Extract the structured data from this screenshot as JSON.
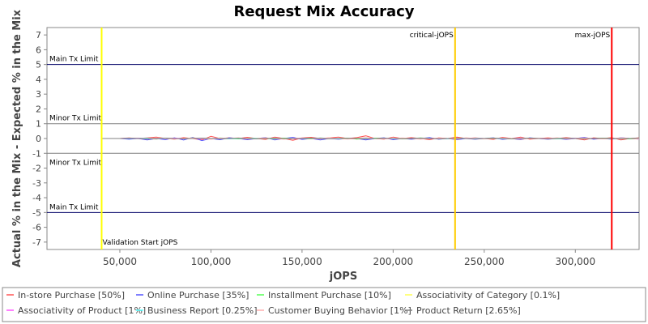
{
  "chart_data": {
    "type": "line",
    "title": "Request Mix Accuracy",
    "xlabel": "jOPS",
    "ylabel": "Actual % in the Mix - Expected % in the Mix",
    "xlim": [
      10000,
      335000
    ],
    "ylim": [
      -7.5,
      7.5
    ],
    "xticks": [
      {
        "value": 50000,
        "label": "50,000"
      },
      {
        "value": 100000,
        "label": "100,000"
      },
      {
        "value": 150000,
        "label": "150,000"
      },
      {
        "value": 200000,
        "label": "200,000"
      },
      {
        "value": 250000,
        "label": "250,000"
      },
      {
        "value": 300000,
        "label": "300,000"
      }
    ],
    "yticks": [
      {
        "value": 7,
        "label": "7"
      },
      {
        "value": 6,
        "label": "6"
      },
      {
        "value": 5,
        "label": "5"
      },
      {
        "value": 4,
        "label": "4"
      },
      {
        "value": 3,
        "label": "3"
      },
      {
        "value": 2,
        "label": "2"
      },
      {
        "value": 1,
        "label": "1"
      },
      {
        "value": 0,
        "label": "0"
      },
      {
        "value": -1,
        "label": "-1"
      },
      {
        "value": -2,
        "label": "-2"
      },
      {
        "value": -3,
        "label": "-3"
      },
      {
        "value": -4,
        "label": "-4"
      },
      {
        "value": -5,
        "label": "-5"
      },
      {
        "value": -6,
        "label": "-6"
      },
      {
        "value": -7,
        "label": "-7"
      }
    ],
    "grid": false,
    "legend_position": "bottom",
    "horizontal_markers": [
      {
        "value": 5,
        "label": "Main Tx Limit",
        "color": "#000066",
        "label_side": "above"
      },
      {
        "value": 1,
        "label": "Minor Tx Limit",
        "color": "#808080",
        "label_side": "above"
      },
      {
        "value": -1,
        "label": "Minor Tx Limit",
        "color": "#808080",
        "label_side": "below"
      },
      {
        "value": -5,
        "label": "Main Tx Limit",
        "color": "#000066",
        "label_side": "above"
      }
    ],
    "vertical_markers": [
      {
        "value": 40000,
        "label": "Validation Start jOPS",
        "color": "#ffff00",
        "label_at": "bottom"
      },
      {
        "value": 234000,
        "label": "critical-jOPS",
        "color": "#ffcc00",
        "label_at": "top"
      },
      {
        "value": 320000,
        "label": "max-jOPS",
        "color": "#ff0000",
        "label_at": "top"
      }
    ],
    "x": [
      40000,
      45000,
      50000,
      55000,
      60000,
      65000,
      70000,
      75000,
      80000,
      85000,
      90000,
      95000,
      100000,
      105000,
      110000,
      115000,
      120000,
      125000,
      130000,
      135000,
      140000,
      145000,
      150000,
      155000,
      160000,
      165000,
      170000,
      175000,
      180000,
      185000,
      190000,
      195000,
      200000,
      205000,
      210000,
      215000,
      220000,
      225000,
      230000,
      235000,
      240000,
      245000,
      250000,
      255000,
      260000,
      265000,
      270000,
      275000,
      280000,
      285000,
      290000,
      295000,
      300000,
      305000,
      310000,
      315000,
      320000,
      325000,
      330000,
      335000
    ],
    "series": [
      {
        "name": "In-store Purchase [50%]",
        "color": "#ff5555",
        "values": [
          0,
          0,
          0,
          0.04,
          0,
          0.05,
          0.1,
          0,
          -0.05,
          0.06,
          0,
          -0.1,
          0.15,
          0,
          0.05,
          0,
          0.08,
          0,
          -0.06,
          0.1,
          0,
          -0.12,
          0.04,
          0.08,
          0,
          0.05,
          0.1,
          0,
          0.06,
          0.18,
          0,
          -0.05,
          0.1,
          0,
          0.06,
          0,
          -0.08,
          0.05,
          0,
          0.1,
          0,
          0.05,
          0,
          -0.06,
          0.08,
          0,
          0.1,
          -0.05,
          0,
          0.05,
          0,
          0.06,
          0,
          -0.1,
          0.05,
          0,
          0.06,
          -0.1,
          0,
          0.05
        ]
      },
      {
        "name": "Online Purchase [35%]",
        "color": "#5555ff",
        "values": [
          0,
          0,
          0,
          -0.05,
          0,
          -0.1,
          0,
          -0.08,
          0.05,
          -0.1,
          0.08,
          -0.14,
          0,
          -0.08,
          0.05,
          0,
          -0.08,
          0,
          0.06,
          -0.1,
          0,
          0.08,
          -0.06,
          0,
          -0.1,
          0,
          -0.05,
          0,
          0,
          -0.1,
          0,
          0.05,
          -0.08,
          0,
          -0.05,
          0,
          0.06,
          -0.05,
          0,
          -0.08,
          0,
          -0.05,
          0,
          0.05,
          -0.06,
          0,
          -0.08,
          0.05,
          0,
          -0.05,
          0,
          -0.06,
          0,
          0.08,
          -0.05,
          0,
          -0.05,
          0.06,
          0,
          -0.04
        ]
      },
      {
        "name": "Installment Purchase [10%]",
        "color": "#55ff55",
        "values": [
          0,
          0,
          0,
          0,
          0.03,
          0,
          -0.04,
          0.03,
          0,
          0,
          0.04,
          0,
          -0.03,
          0.04,
          0,
          -0.03,
          0,
          0.03,
          0,
          -0.03,
          0.03,
          0,
          0,
          -0.03,
          0.04,
          0,
          0,
          0.03,
          -0.04,
          0,
          0.03,
          0,
          0,
          -0.03,
          0,
          0.04,
          0,
          0,
          -0.03,
          0,
          0.03,
          0,
          0,
          0.03,
          0,
          -0.03,
          0,
          0.03,
          0,
          0,
          -0.03,
          0,
          0.03,
          0,
          0,
          0.03,
          0,
          0,
          -0.03,
          0
        ]
      },
      {
        "name": "Associativity of Category [0.1%]",
        "color": "#ffff55",
        "values": [
          0,
          0,
          0,
          0,
          0,
          0,
          0,
          0,
          0,
          0,
          0,
          0,
          0,
          0,
          0,
          0,
          0,
          0,
          0,
          0,
          0,
          0,
          0,
          0,
          0,
          0,
          0,
          0,
          0,
          0,
          0,
          0,
          0,
          0,
          0,
          0,
          0,
          0,
          0,
          0,
          0,
          0,
          0,
          0,
          0,
          0,
          0,
          0,
          0,
          0,
          0,
          0,
          0,
          0,
          0,
          0,
          0,
          0,
          0,
          0
        ]
      },
      {
        "name": "Associativity of Product [1%]",
        "color": "#ff55ff",
        "values": [
          0,
          0,
          0,
          0,
          0.02,
          0,
          -0.02,
          0,
          0.02,
          0,
          0,
          -0.02,
          0,
          0.02,
          0,
          0,
          -0.02,
          0,
          0.02,
          0,
          0,
          -0.02,
          0,
          0,
          0.02,
          0,
          0,
          -0.02,
          0,
          0.02,
          0,
          0,
          -0.02,
          0,
          0,
          0.02,
          0,
          0,
          -0.02,
          0,
          0,
          0.02,
          0,
          0,
          -0.02,
          0,
          0.02,
          0,
          0,
          -0.02,
          0,
          0,
          0.02,
          0,
          0,
          -0.02,
          0,
          0.02,
          0,
          0
        ]
      },
      {
        "name": "Business Report [0.25%]",
        "color": "#55ffff",
        "values": [
          0,
          0,
          0,
          0,
          0,
          0.02,
          0,
          0,
          -0.02,
          0,
          0,
          0.02,
          0,
          0,
          -0.02,
          0,
          0,
          0.02,
          0,
          0,
          -0.02,
          0,
          0,
          0.02,
          0,
          0,
          -0.02,
          0,
          0,
          0.02,
          0,
          0,
          -0.02,
          0,
          0,
          0.02,
          0,
          0,
          -0.02,
          0,
          0,
          0.02,
          0,
          0,
          -0.02,
          0,
          0,
          0.02,
          0,
          0,
          -0.02,
          0,
          0,
          0.02,
          0,
          0,
          -0.02,
          0,
          0,
          0.02
        ]
      },
      {
        "name": "Customer Buying Behavior [1%]",
        "color": "#ffafaf",
        "values": [
          0,
          0,
          0,
          0.03,
          0,
          -0.03,
          0.05,
          0,
          -0.04,
          0,
          0.04,
          0,
          -0.05,
          0.03,
          0,
          0.05,
          -0.03,
          0,
          0.04,
          0,
          -0.05,
          0,
          0.04,
          0,
          -0.03,
          0.05,
          0,
          -0.04,
          0,
          0.06,
          0,
          -0.03,
          0,
          0.04,
          0,
          -0.05,
          0,
          0.03,
          0,
          -0.04,
          0.05,
          0,
          -0.03,
          0,
          0.04,
          0,
          -0.05,
          0,
          0.03,
          0,
          0.05,
          -0.03,
          0,
          0.04,
          0,
          -0.03,
          0,
          0.05,
          0,
          -0.04
        ]
      },
      {
        "name": "Product Return [2.65%]",
        "color": "#808080",
        "values": [
          0,
          0,
          0,
          0.02,
          0,
          -0.03,
          0,
          0.03,
          0,
          -0.02,
          0,
          0.03,
          0,
          -0.02,
          0,
          0.02,
          0,
          -0.03,
          0,
          0.02,
          0,
          -0.02,
          0,
          0.03,
          0,
          -0.02,
          0,
          0.02,
          0,
          -0.03,
          0,
          0.02,
          0,
          -0.02,
          0,
          0.03,
          0,
          -0.02,
          0,
          0.02,
          0,
          -0.03,
          0,
          0.02,
          0,
          -0.02,
          0,
          0.03,
          0,
          -0.02,
          0,
          0.02,
          0,
          -0.03,
          0,
          0.02,
          0,
          -0.02,
          0,
          0.03
        ]
      }
    ]
  }
}
